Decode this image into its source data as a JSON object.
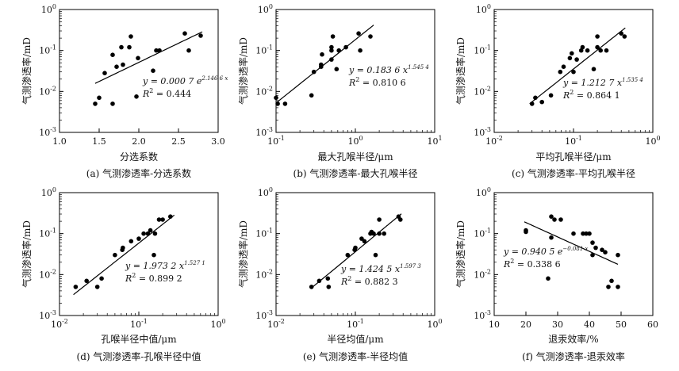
{
  "chart_data": [
    {
      "type": "scatter",
      "id": "a",
      "caption": "(a) 气测渗透率-分选系数",
      "xlabel": "分选系数",
      "ylabel": "气测渗透率/mD",
      "xscale": "linear",
      "xlim": [
        1.0,
        3.0
      ],
      "xticks": [
        "1.0",
        "1.5",
        "2.0",
        "2.5",
        "3.0"
      ],
      "ylim_log10": [
        -3,
        0
      ],
      "yticks": [
        "10^-3",
        "10^-2",
        "10^-1",
        "10^0"
      ],
      "fit": {
        "type": "exponential",
        "a": 0.0007,
        "b": 2.1466,
        "x_range": [
          1.45,
          2.8
        ]
      },
      "equation": {
        "prefix": "y = 0.000 7 e",
        "exponent": "2.146 6 x",
        "r2_prefix": "R",
        "r2_sup": "2",
        "r2_value": " = 0.444"
      },
      "x": [
        1.45,
        1.5,
        1.57,
        1.67,
        1.67,
        1.72,
        1.78,
        1.8,
        1.88,
        1.9,
        1.97,
        1.99,
        2.18,
        2.22,
        2.26,
        2.58,
        2.63,
        2.78
      ],
      "y": [
        0.005,
        0.007,
        0.028,
        0.005,
        0.078,
        0.04,
        0.12,
        0.045,
        0.12,
        0.22,
        0.0075,
        0.065,
        0.032,
        0.1,
        0.1,
        0.26,
        0.1,
        0.23
      ]
    },
    {
      "type": "scatter",
      "id": "b",
      "caption": "(b) 气测渗透率-最大孔喉半径",
      "xlabel": "最大孔喉半径/μm",
      "ylabel": "气测渗透率/mD",
      "xscale": "log",
      "xlim_log10": [
        -1,
        1
      ],
      "xticks": [
        "10^-1",
        "10^0",
        "10^1"
      ],
      "ylim_log10": [
        -3,
        0
      ],
      "yticks": [
        "10^-3",
        "10^-2",
        "10^-1",
        "10^0"
      ],
      "fit": {
        "type": "power",
        "a": 0.1836,
        "b": 1.5454,
        "x_range": [
          0.1,
          1.7
        ]
      },
      "equation": {
        "prefix": "y = 0.183 6 x",
        "exponent": "1.545 4",
        "r2_prefix": "R",
        "r2_sup": "2",
        "r2_value": " = 0.810 6"
      },
      "x": [
        0.1,
        0.105,
        0.13,
        0.28,
        0.3,
        0.37,
        0.37,
        0.38,
        0.5,
        0.5,
        0.5,
        0.52,
        0.58,
        0.62,
        0.76,
        1.1,
        1.15,
        1.55
      ],
      "y": [
        0.007,
        0.005,
        0.005,
        0.008,
        0.03,
        0.04,
        0.045,
        0.08,
        0.06,
        0.1,
        0.12,
        0.22,
        0.035,
        0.1,
        0.12,
        0.26,
        0.1,
        0.22
      ]
    },
    {
      "type": "scatter",
      "id": "c",
      "caption": "(c) 气测渗透率-平均孔喉半径",
      "xlabel": "平均孔喉半径/μm",
      "ylabel": "气测渗透率/mD",
      "xscale": "log",
      "xlim_log10": [
        -2,
        0
      ],
      "xticks": [
        "10^-2",
        "10^-1",
        "10^0"
      ],
      "ylim_log10": [
        -3,
        0
      ],
      "yticks": [
        "10^-3",
        "10^-2",
        "10^-1",
        "10^0"
      ],
      "fit": {
        "type": "power",
        "a": 1.2127,
        "b": 1.5354,
        "x_range": [
          0.028,
          0.45
        ]
      },
      "equation": {
        "prefix": "y = 1.212 7 x",
        "exponent": "1.535 4",
        "r2_prefix": "R",
        "r2_sup": "2",
        "r2_value": " = 0.864 1"
      },
      "x": [
        0.03,
        0.033,
        0.04,
        0.052,
        0.068,
        0.075,
        0.09,
        0.095,
        0.1,
        0.11,
        0.125,
        0.13,
        0.15,
        0.18,
        0.2,
        0.2,
        0.22,
        0.26,
        0.4,
        0.44
      ],
      "y": [
        0.005,
        0.007,
        0.0055,
        0.008,
        0.03,
        0.04,
        0.065,
        0.085,
        0.03,
        0.06,
        0.1,
        0.12,
        0.1,
        0.035,
        0.12,
        0.22,
        0.1,
        0.1,
        0.26,
        0.22
      ]
    },
    {
      "type": "scatter",
      "id": "d",
      "caption": "(d) 气测渗透率-孔喉半径中值",
      "xlabel": "孔喉半径中值/μm",
      "ylabel": "气测渗透率/mD",
      "xscale": "log",
      "xlim_log10": [
        -2,
        0
      ],
      "xticks": [
        "10^-2",
        "10^-1",
        "10^0"
      ],
      "ylim_log10": [
        -3,
        0
      ],
      "yticks": [
        "10^-3",
        "10^-2",
        "10^-1",
        "10^0"
      ],
      "fit": {
        "type": "power",
        "a": 1.9732,
        "b": 1.5271,
        "x_range": [
          0.015,
          0.28
        ]
      },
      "equation": {
        "prefix": "y = 1.973 2 x",
        "exponent": "1.527 1",
        "r2_prefix": "R",
        "r2_sup": "2",
        "r2_value": " = 0.899 2"
      },
      "x": [
        0.016,
        0.022,
        0.03,
        0.034,
        0.05,
        0.062,
        0.063,
        0.08,
        0.1,
        0.115,
        0.13,
        0.14,
        0.155,
        0.16,
        0.18,
        0.2,
        0.25
      ],
      "y": [
        0.005,
        0.007,
        0.005,
        0.008,
        0.03,
        0.04,
        0.045,
        0.065,
        0.075,
        0.1,
        0.1,
        0.12,
        0.03,
        0.1,
        0.22,
        0.22,
        0.26
      ]
    },
    {
      "type": "scatter",
      "id": "e",
      "caption": "(e) 气测渗透率-半径均值",
      "xlabel": "半径均值/μm",
      "ylabel": "气测渗透率/mD",
      "xscale": "log",
      "xlim_log10": [
        -2,
        0
      ],
      "xticks": [
        "10^-2",
        "10^-1",
        "10^0"
      ],
      "ylim_log10": [
        -3,
        0
      ],
      "yticks": [
        "10^-3",
        "10^-2",
        "10^-1",
        "10^0"
      ],
      "fit": {
        "type": "power",
        "a": 1.4245,
        "b": 1.5973,
        "x_range": [
          0.028,
          0.38
        ]
      },
      "equation": {
        "prefix": "y = 1.424 5 x",
        "exponent": "1.597 3",
        "r2_prefix": "R",
        "r2_sup": "2",
        "r2_value": " = 0.882 3"
      },
      "x": [
        0.028,
        0.035,
        0.045,
        0.046,
        0.08,
        0.098,
        0.1,
        0.12,
        0.13,
        0.155,
        0.16,
        0.17,
        0.18,
        0.2,
        0.2,
        0.23,
        0.35,
        0.37
      ],
      "y": [
        0.005,
        0.007,
        0.008,
        0.005,
        0.03,
        0.04,
        0.045,
        0.075,
        0.065,
        0.1,
        0.11,
        0.1,
        0.03,
        0.1,
        0.22,
        0.1,
        0.26,
        0.22
      ]
    },
    {
      "type": "scatter",
      "id": "f",
      "caption": "(f) 气测渗透率-退汞效率",
      "xlabel": "退汞效率/%",
      "ylabel": "气测渗透率/mD",
      "xscale": "linear",
      "xlim": [
        10,
        60
      ],
      "xticks": [
        "10",
        "20",
        "30",
        "40",
        "50",
        "60"
      ],
      "ylim_log10": [
        -3,
        0
      ],
      "yticks": [
        "10^-3",
        "10^-2",
        "10^-1",
        "10^0"
      ],
      "fit": {
        "type": "exponential",
        "a": 0.9405,
        "b": -0.081,
        "x_range": [
          19.5,
          49
        ]
      },
      "equation": {
        "prefix": "y = 0.940 5 e",
        "exponent": "−0.081 x",
        "r2_prefix": "R",
        "r2_sup": "2",
        "r2_value": " = 0.338 6"
      },
      "x": [
        20,
        20,
        27,
        28,
        28,
        29,
        31,
        35,
        38,
        39,
        40,
        41,
        41,
        42,
        44,
        45,
        46,
        47,
        49,
        49
      ],
      "y": [
        0.11,
        0.12,
        0.008,
        0.26,
        0.08,
        0.22,
        0.22,
        0.1,
        0.1,
        0.1,
        0.1,
        0.03,
        0.06,
        0.045,
        0.04,
        0.035,
        0.005,
        0.007,
        0.005,
        0.03
      ]
    }
  ]
}
